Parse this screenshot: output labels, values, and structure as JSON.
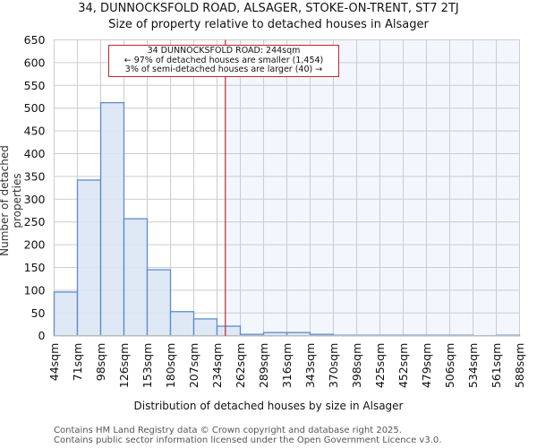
{
  "header": {
    "title": "34, DUNNOCKSFOLD ROAD, ALSAGER, STOKE-ON-TRENT, ST7 2TJ",
    "subtitle": "Size of property relative to detached houses in Alsager"
  },
  "annotation": {
    "line1": "34 DUNNOCKSFOLD ROAD: 244sqm",
    "line2": "← 97% of detached houses are smaller (1,454)",
    "line3": "3% of semi-detached houses are larger (40) →"
  },
  "footer": {
    "line1": "Contains HM Land Registry data © Crown copyright and database right 2025.",
    "line2": "Contains public sector information licensed under the Open Government Licence v3.0."
  },
  "colors": {
    "bar_fill": "#dce6f4",
    "bar_edge": "#5b8ccc",
    "highlight_line": "#c0262d",
    "shade": "#f3f6fd",
    "grid": "#cccccc"
  },
  "chart_data": {
    "type": "bar",
    "title": "Size of property relative to detached houses in Alsager",
    "xlabel": "Distribution of detached houses by size in Alsager",
    "ylabel": "Number of detached properties",
    "ylim": [
      0,
      650
    ],
    "yticks": [
      0,
      50,
      100,
      150,
      200,
      250,
      300,
      350,
      400,
      450,
      500,
      550,
      600,
      650
    ],
    "grid": true,
    "categories": [
      "44sqm",
      "71sqm",
      "98sqm",
      "126sqm",
      "153sqm",
      "180sqm",
      "207sqm",
      "234sqm",
      "262sqm",
      "289sqm",
      "316sqm",
      "343sqm",
      "370sqm",
      "398sqm",
      "425sqm",
      "452sqm",
      "479sqm",
      "506sqm",
      "534sqm",
      "561sqm",
      "588sqm"
    ],
    "values": [
      96,
      342,
      512,
      257,
      145,
      53,
      37,
      21,
      3,
      7,
      7,
      3,
      1,
      1,
      1,
      1,
      1,
      1,
      0,
      1
    ],
    "marker": {
      "value": 244,
      "label": "34 DUNNOCKSFOLD ROAD: 244sqm"
    }
  }
}
